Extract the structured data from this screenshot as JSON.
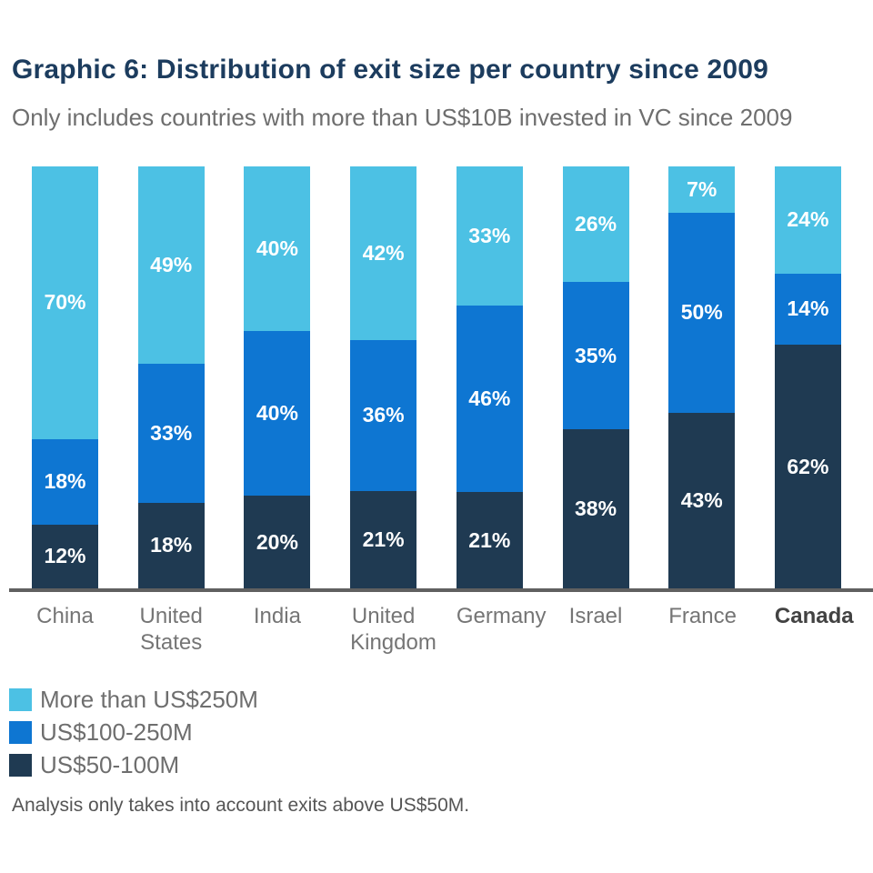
{
  "header": {
    "title": "Graphic 6: Distribution of exit size per country since 2009",
    "subtitle": "Only includes countries with more than US$10B invested in VC since 2009"
  },
  "chart_data": {
    "type": "bar",
    "variant": "stacked-100-vertical",
    "title": "Graphic 6: Distribution of exit size per country since 2009",
    "subtitle": "Only includes countries with more than US$10B invested in VC since 2009",
    "categories": [
      "China",
      "United States",
      "India",
      "United Kingdom",
      "Germany",
      "Israel",
      "France",
      "Canada"
    ],
    "series": [
      {
        "name": "More than US$250M",
        "color": "#4cc1e4",
        "values": [
          70,
          49,
          40,
          42,
          33,
          26,
          7,
          24
        ]
      },
      {
        "name": "US$100-250M",
        "color": "#0e76d2",
        "values": [
          18,
          33,
          40,
          36,
          46,
          35,
          50,
          14
        ]
      },
      {
        "name": "US$50-100M",
        "color": "#1f3a52",
        "values": [
          12,
          18,
          20,
          21,
          21,
          38,
          43,
          62
        ]
      }
    ],
    "value_suffix": "%",
    "label_color": "#ffffff",
    "axis_line_color": "#606060",
    "highlight_category": "Canada",
    "legend_position": "bottom-left",
    "grid": false,
    "ylim": [
      0,
      100
    ]
  },
  "footer": {
    "note": "Analysis only takes into account exits above US$50M."
  },
  "colors": {
    "title": "#1c3c5e",
    "subtitle_text": "#6e6e6e",
    "category_text": "#757575",
    "highlight_category_text": "#424242",
    "background": "#ffffff"
  }
}
